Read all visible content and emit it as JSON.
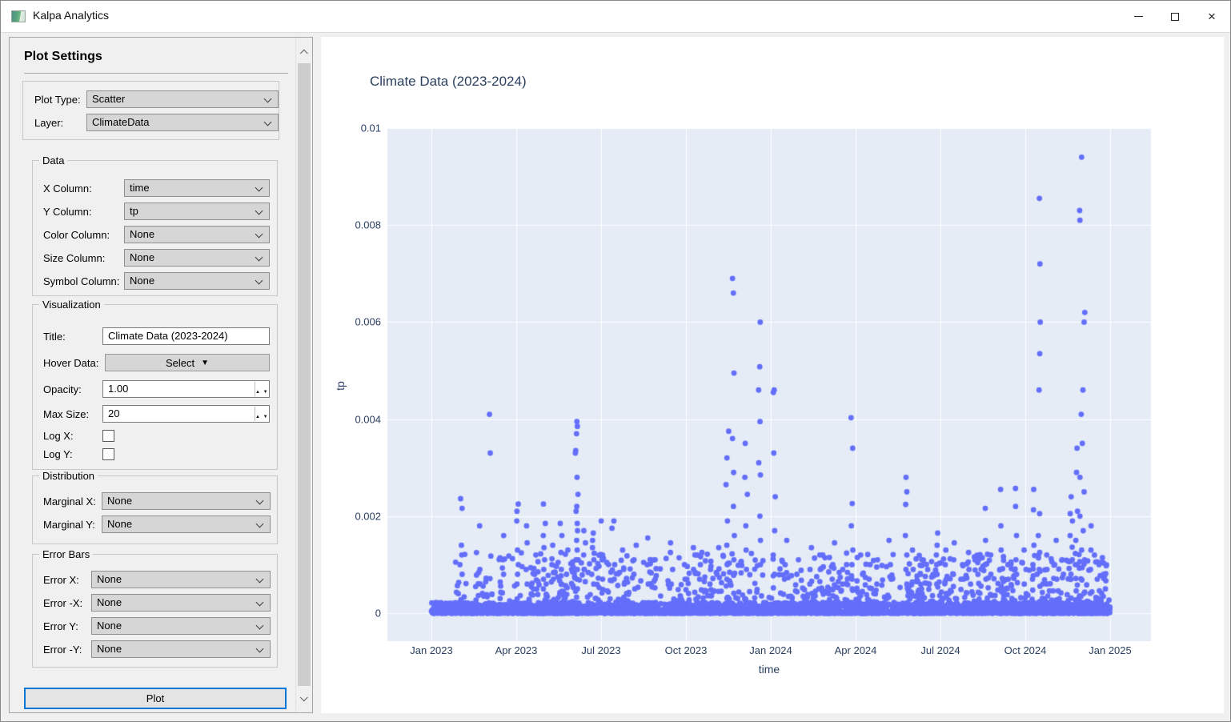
{
  "window": {
    "title": "Kalpa Analytics",
    "controls": {
      "close_glyph": "×"
    }
  },
  "sidebar": {
    "heading": "Plot Settings",
    "top_group": {
      "plot_type_label": "Plot Type:",
      "plot_type_value": "Scatter",
      "layer_label": "Layer:",
      "layer_value": "ClimateData"
    },
    "data_group": {
      "title": "Data",
      "rows": [
        {
          "label": "X Column:",
          "value": "time"
        },
        {
          "label": "Y Column:",
          "value": "tp"
        },
        {
          "label": "Color Column:",
          "value": "None"
        },
        {
          "label": "Size Column:",
          "value": "None"
        },
        {
          "label": "Symbol Column:",
          "value": "None"
        }
      ]
    },
    "visualization_group": {
      "title": "Visualization",
      "title_label": "Title:",
      "title_value": "Climate Data (2023-2024)",
      "hover_label": "Hover Data:",
      "hover_button_label": "Select",
      "hover_button_icon": "▼",
      "opacity_label": "Opacity:",
      "opacity_value": "1.00",
      "max_size_label": "Max Size:",
      "max_size_value": "20",
      "log_x_label": "Log X:",
      "log_y_label": "Log Y:",
      "log_x_checked": false,
      "log_y_checked": false,
      "spin_up": "▲",
      "spin_down": "▼"
    },
    "distribution_group": {
      "title": "Distribution",
      "rows": [
        {
          "label": "Marginal X:",
          "value": "None"
        },
        {
          "label": "Marginal Y:",
          "value": "None"
        }
      ]
    },
    "error_group": {
      "title": "Error Bars",
      "rows": [
        {
          "label": "Error X:",
          "value": "None"
        },
        {
          "label": "Error -X:",
          "value": "None"
        },
        {
          "label": "Error Y:",
          "value": "None"
        },
        {
          "label": "Error -Y:",
          "value": "None"
        }
      ]
    },
    "plot_button_label": "Plot"
  },
  "chart_data": {
    "type": "scatter",
    "title": "Climate Data (2023-2024)",
    "xlabel": "time",
    "ylabel": "tp",
    "x_tick_labels": [
      "Jan 2023",
      "Apr 2023",
      "Jul 2023",
      "Oct 2023",
      "Jan 2024",
      "Apr 2024",
      "Jul 2024",
      "Oct 2024",
      "Jan 2025"
    ],
    "y_tick_values": [
      0,
      0.002,
      0.004,
      0.006,
      0.008,
      0.01
    ],
    "y_tick_labels": [
      "0",
      "0.002",
      "0.004",
      "0.006",
      "0.008",
      "0.01"
    ],
    "x_range": [
      "2023-01-01",
      "2025-01-01"
    ],
    "ylim": [
      -0.00058,
      0.01
    ],
    "grid": true,
    "marker_color": "#636efa",
    "plot_bg": "#e5ecf6",
    "text_color": "#2a3f5f",
    "base_band": {
      "n": 3200,
      "max": 0.00022,
      "seed": 1337
    },
    "fuzz": {
      "n": 950,
      "max": 0.0011,
      "seed": 777,
      "spread": 0.018
    },
    "spike_jitter_seed": 99,
    "spikes": [
      {
        "x": 0.044,
        "ys": [
          0.00236,
          0.00216,
          0.0014,
          0.0012,
          0.001,
          0.0008
        ]
      },
      {
        "x": 0.073,
        "ys": [
          0.0018,
          0.0009
        ]
      },
      {
        "x": 0.086,
        "ys": [
          0.0041,
          0.0033
        ]
      },
      {
        "x": 0.107,
        "ys": [
          0.0016,
          0.0011,
          0.0008
        ]
      },
      {
        "x": 0.127,
        "ys": [
          0.00225,
          0.0021,
          0.0019,
          0.0013,
          0.001,
          0.0008,
          0.0006
        ]
      },
      {
        "x": 0.14,
        "ys": [
          0.0018,
          0.00145,
          0.0009,
          0.0006
        ]
      },
      {
        "x": 0.152,
        "ys": [
          0.0012,
          0.0008
        ]
      },
      {
        "x": 0.166,
        "ys": [
          0.00225,
          0.00185,
          0.0016,
          0.00135,
          0.0011,
          0.0009,
          0.0007,
          0.0005
        ]
      },
      {
        "x": 0.178,
        "ys": [
          0.0014,
          0.001,
          0.0007
        ]
      },
      {
        "x": 0.191,
        "ys": [
          0.00185,
          0.0016,
          0.00125,
          0.0009,
          0.0006
        ]
      },
      {
        "x": 0.2,
        "ys": [
          0.0013,
          0.0008
        ]
      },
      {
        "x": 0.214,
        "ys": [
          0.00395,
          0.00385,
          0.0037,
          0.00335,
          0.0033,
          0.0028,
          0.00245,
          0.0022,
          0.0021,
          0.00185,
          0.0017,
          0.0015,
          0.0013,
          0.0011,
          0.0009,
          0.0007,
          0.0005
        ]
      },
      {
        "x": 0.226,
        "ys": [
          0.0017,
          0.00145,
          0.0012,
          0.0009
        ]
      },
      {
        "x": 0.238,
        "ys": [
          0.00165,
          0.0015,
          0.00135,
          0.0011,
          0.0008,
          0.0006
        ]
      },
      {
        "x": 0.252,
        "ys": [
          0.0019,
          0.0012,
          0.0007
        ]
      },
      {
        "x": 0.268,
        "ys": [
          0.0019,
          0.00175,
          0.001,
          0.0007
        ]
      },
      {
        "x": 0.283,
        "ys": [
          0.0013,
          0.0009,
          0.0006
        ]
      },
      {
        "x": 0.3,
        "ys": [
          0.0014,
          0.0011,
          0.0008,
          0.0005
        ]
      },
      {
        "x": 0.318,
        "ys": [
          0.00155,
          0.001,
          0.0006
        ]
      },
      {
        "x": 0.33,
        "ys": [
          0.0011,
          0.0007
        ]
      },
      {
        "x": 0.354,
        "ys": [
          0.00145,
          0.00125,
          0.0009,
          0.0006
        ]
      },
      {
        "x": 0.372,
        "ys": [
          0.001,
          0.0007
        ]
      },
      {
        "x": 0.385,
        "ys": [
          0.00135,
          0.0009
        ]
      },
      {
        "x": 0.397,
        "ys": [
          0.00125,
          0.001,
          0.0007
        ]
      },
      {
        "x": 0.41,
        "ys": [
          0.0009,
          0.0006
        ]
      },
      {
        "x": 0.422,
        "ys": [
          0.00135,
          0.0008
        ]
      },
      {
        "x": 0.436,
        "ys": [
          0.00375,
          0.0032,
          0.00265,
          0.0019,
          0.0014,
          0.001,
          0.0007
        ]
      },
      {
        "x": 0.445,
        "ys": [
          0.0069,
          0.0066,
          0.00495,
          0.0036,
          0.0029,
          0.0022,
          0.0016,
          0.0011,
          0.0008
        ]
      },
      {
        "x": 0.4635,
        "ys": [
          0.0035,
          0.0028,
          0.00245,
          0.0018,
          0.0013,
          0.0009
        ]
      },
      {
        "x": 0.483,
        "ys": [
          0.006,
          0.00508,
          0.0046,
          0.00395,
          0.0031,
          0.00285,
          0.002,
          0.0015,
          0.001
        ]
      },
      {
        "x": 0.505,
        "ys": [
          0.0046,
          0.00455,
          0.0033,
          0.0024,
          0.0017,
          0.0012,
          0.0008
        ]
      },
      {
        "x": 0.522,
        "ys": [
          0.0015,
          0.001,
          0.0007
        ]
      },
      {
        "x": 0.54,
        "ys": [
          0.0011,
          0.0008
        ]
      },
      {
        "x": 0.558,
        "ys": [
          0.00135,
          0.0009,
          0.0006
        ]
      },
      {
        "x": 0.571,
        "ys": [
          0.0012,
          0.0009,
          0.00065
        ]
      },
      {
        "x": 0.592,
        "ys": [
          0.00145,
          0.001,
          0.0007
        ]
      },
      {
        "x": 0.607,
        "ys": [
          0.0009,
          0.0006
        ]
      },
      {
        "x": 0.62,
        "ys": [
          0.00403,
          0.0034,
          0.00226,
          0.0018,
          0.0013,
          0.001,
          0.0007,
          0.0005
        ]
      },
      {
        "x": 0.634,
        "ys": [
          0.0012,
          0.0008
        ]
      },
      {
        "x": 0.646,
        "ys": [
          0.001,
          0.0007
        ]
      },
      {
        "x": 0.658,
        "ys": [
          0.0011,
          0.00095,
          0.0006
        ]
      },
      {
        "x": 0.676,
        "ys": [
          0.0015,
          0.001,
          0.0007
        ]
      },
      {
        "x": 0.699,
        "ys": [
          0.0028,
          0.0025,
          0.00224,
          0.0016,
          0.0012,
          0.0009,
          0.0006
        ]
      },
      {
        "x": 0.71,
        "ys": [
          0.0013,
          0.0009
        ]
      },
      {
        "x": 0.722,
        "ys": [
          0.0011,
          0.0008,
          0.0005
        ]
      },
      {
        "x": 0.733,
        "ys": [
          0.0009,
          0.0006
        ]
      },
      {
        "x": 0.745,
        "ys": [
          0.00165,
          0.0014,
          0.0012,
          0.001,
          0.0008,
          0.0006
        ]
      },
      {
        "x": 0.757,
        "ys": [
          0.0013,
          0.001,
          0.0007
        ]
      },
      {
        "x": 0.769,
        "ys": [
          0.00145,
          0.0011,
          0.0008,
          0.00055
        ]
      },
      {
        "x": 0.781,
        "ys": [
          0.001,
          0.0007
        ]
      },
      {
        "x": 0.7925,
        "ys": [
          0.00125,
          0.0009,
          0.0006
        ]
      },
      {
        "x": 0.805,
        "ys": [
          0.0011,
          0.0008
        ]
      },
      {
        "x": 0.815,
        "ys": [
          0.00216,
          0.0015,
          0.001,
          0.0007
        ]
      },
      {
        "x": 0.826,
        "ys": [
          0.0012,
          0.0008
        ]
      },
      {
        "x": 0.838,
        "ys": [
          0.00255,
          0.0018,
          0.0013,
          0.0009
        ]
      },
      {
        "x": 0.85,
        "ys": [
          0.001,
          0.0007
        ]
      },
      {
        "x": 0.862,
        "ys": [
          0.00257,
          0.0022,
          0.0016,
          0.0011,
          0.0008
        ]
      },
      {
        "x": 0.875,
        "ys": [
          0.0013,
          0.0009,
          0.0006
        ]
      },
      {
        "x": 0.887,
        "ys": [
          0.00255,
          0.00213,
          0.0014,
          0.001,
          0.0007
        ]
      },
      {
        "x": 0.896,
        "ys": [
          0.00855,
          0.0072,
          0.006,
          0.00535,
          0.0046,
          0.00205,
          0.0016,
          0.00125,
          0.0009
        ]
      },
      {
        "x": 0.908,
        "ys": [
          0.0012,
          0.0009,
          0.0006
        ]
      },
      {
        "x": 0.92,
        "ys": [
          0.0015,
          0.001,
          0.0007
        ]
      },
      {
        "x": 0.931,
        "ys": [
          0.0011,
          0.0008
        ]
      },
      {
        "x": 0.943,
        "ys": [
          0.0024,
          0.00205,
          0.0019,
          0.0016,
          0.00136,
          0.0011,
          0.0008
        ]
      },
      {
        "x": 0.95,
        "ys": [
          0.0034,
          0.0029,
          0.0021,
          0.0015,
          0.001
        ]
      },
      {
        "x": 0.9565,
        "ys": [
          0.0094,
          0.0083,
          0.0081,
          0.0041,
          0.0028,
          0.002,
          0.0013
        ]
      },
      {
        "x": 0.961,
        "ys": [
          0.0062,
          0.006,
          0.0046,
          0.0035,
          0.0025,
          0.0017,
          0.0011
        ]
      },
      {
        "x": 0.972,
        "ys": [
          0.0018,
          0.0013,
          0.0009
        ]
      },
      {
        "x": 0.982,
        "ys": [
          0.001,
          0.0007
        ]
      },
      {
        "x": 0.992,
        "ys": [
          0.0008,
          0.0005
        ]
      }
    ]
  }
}
